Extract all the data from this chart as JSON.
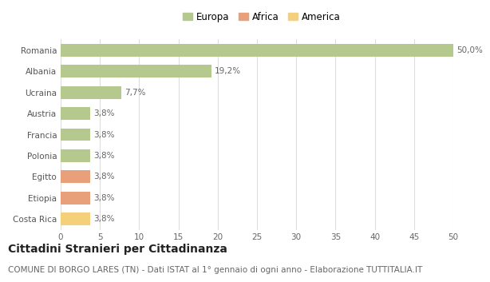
{
  "categories": [
    "Romania",
    "Albania",
    "Ucraina",
    "Austria",
    "Francia",
    "Polonia",
    "Egitto",
    "Etiopia",
    "Costa Rica"
  ],
  "values": [
    50.0,
    19.2,
    7.7,
    3.8,
    3.8,
    3.8,
    3.8,
    3.8,
    3.8
  ],
  "labels": [
    "50,0%",
    "19,2%",
    "7,7%",
    "3,8%",
    "3,8%",
    "3,8%",
    "3,8%",
    "3,8%",
    "3,8%"
  ],
  "colors": [
    "#b5c98e",
    "#b5c98e",
    "#b5c98e",
    "#b5c98e",
    "#b5c98e",
    "#b5c98e",
    "#e8a07a",
    "#e8a07a",
    "#f5d07a"
  ],
  "legend_labels": [
    "Europa",
    "Africa",
    "America"
  ],
  "legend_colors": [
    "#b5c98e",
    "#e8a07a",
    "#f5d07a"
  ],
  "xlim": [
    0,
    50
  ],
  "xticks": [
    0,
    5,
    10,
    15,
    20,
    25,
    30,
    35,
    40,
    45,
    50
  ],
  "title": "Cittadini Stranieri per Cittadinanza",
  "subtitle": "COMUNE DI BORGO LARES (TN) - Dati ISTAT al 1° gennaio di ogni anno - Elaborazione TUTTITALIA.IT",
  "bg_color": "#ffffff",
  "grid_color": "#dddddd",
  "bar_height": 0.6,
  "title_fontsize": 10,
  "subtitle_fontsize": 7.5,
  "label_fontsize": 7.5,
  "tick_fontsize": 7.5,
  "legend_fontsize": 8.5
}
